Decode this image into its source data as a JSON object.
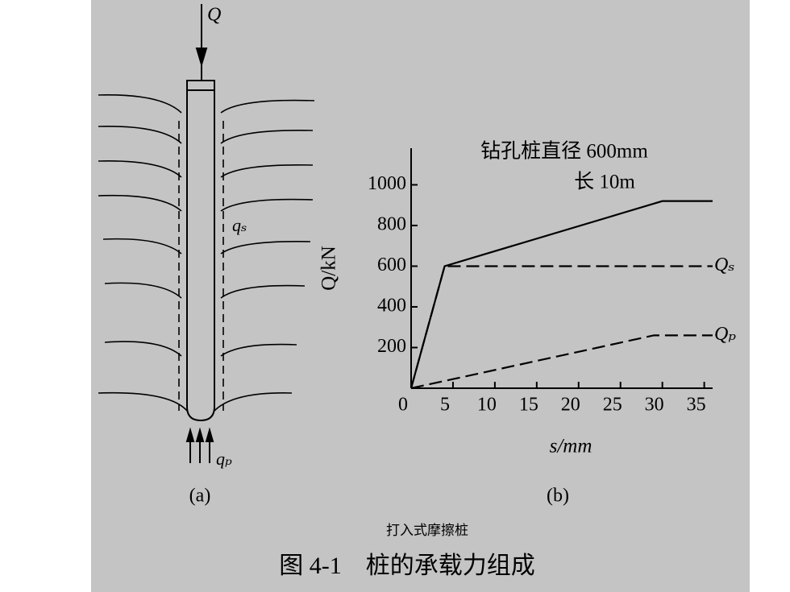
{
  "diagram": {
    "load_label": "Q",
    "side_label": "qₛ",
    "tip_label": "qₚ",
    "panel_label": "(a)"
  },
  "chart_data": {
    "type": "line",
    "title": "钻孔桩直径 600mm",
    "subtitle": "长 10m",
    "x_label": "s/mm",
    "y_label": "Q/kN",
    "panel_label": "(b)",
    "xlim": [
      0,
      36
    ],
    "ylim": [
      0,
      1180
    ],
    "xticks": [
      0,
      5,
      10,
      15,
      20,
      25,
      30,
      35
    ],
    "yticks": [
      200,
      400,
      600,
      800,
      1000
    ],
    "series": [
      {
        "color": "#000000",
        "dashed": false,
        "x": [
          0,
          4,
          30,
          36
        ],
        "values": [
          0,
          600,
          920,
          920
        ]
      },
      {
        "name": "Qₛ",
        "color": "#000000",
        "dashed": true,
        "x": [
          0,
          4,
          36
        ],
        "values": [
          0,
          600,
          600
        ]
      },
      {
        "name": "Qₚ",
        "color": "#000000",
        "dashed": true,
        "x": [
          0,
          29,
          36
        ],
        "values": [
          0,
          260,
          260
        ]
      }
    ]
  },
  "caption": {
    "subtitle": "打入式摩擦桩",
    "title": "图 4-1　桩的承载力组成"
  }
}
